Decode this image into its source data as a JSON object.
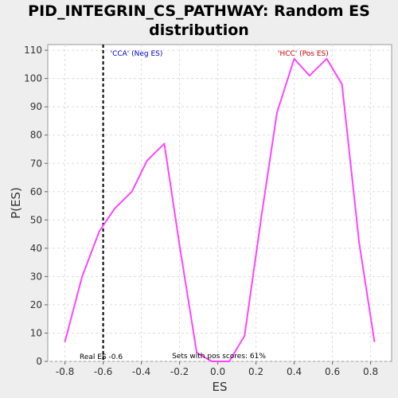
{
  "chart_data": {
    "type": "line",
    "title": "PID_INTEGRIN_CS_PATHWAY: Random ES distribution",
    "xlabel": "ES",
    "ylabel": "P(ES)",
    "xlim": [
      -0.89,
      0.91
    ],
    "ylim": [
      0,
      112
    ],
    "xticks": [
      -0.8,
      -0.6,
      -0.4,
      -0.2,
      0.0,
      0.2,
      0.4,
      0.6,
      0.8
    ],
    "xtick_labels": [
      "-0.8",
      "-0.6",
      "-0.4",
      "-0.2",
      "0.0",
      "0.2",
      "0.4",
      "0.6",
      "0.8"
    ],
    "yticks": [
      0,
      10,
      20,
      30,
      40,
      50,
      60,
      70,
      80,
      90,
      100,
      110
    ],
    "ytick_labels": [
      "0",
      "10",
      "20",
      "30",
      "40",
      "50",
      "60",
      "70",
      "80",
      "90",
      "100",
      "110"
    ],
    "grid": true,
    "series": [
      {
        "color": "#ff44ff",
        "x": [
          -0.8,
          -0.71,
          -0.62,
          -0.54,
          -0.45,
          -0.37,
          -0.28,
          -0.2,
          -0.11,
          -0.03,
          0.06,
          0.14,
          0.23,
          0.31,
          0.4,
          0.48,
          0.57,
          0.65,
          0.74,
          0.82
        ],
        "y": [
          7,
          30,
          46,
          54,
          60,
          71,
          77,
          41,
          3,
          0,
          0,
          9,
          52,
          88,
          107,
          101,
          107,
          98,
          42,
          7
        ]
      }
    ],
    "vline": {
      "x": -0.6,
      "color": "#000000",
      "style": "dashed"
    },
    "annotations": {
      "neg": {
        "text": "'CCA' (Neg ES)",
        "color": "#0000cc"
      },
      "pos": {
        "text": "'HCC' (Pos ES)",
        "color": "#cc0000"
      },
      "real_es": {
        "text": "Real ES -0.6",
        "color": "#000000"
      },
      "pos_scores": {
        "text": "Sets with pos scores: 61%",
        "color": "#000000"
      }
    }
  }
}
